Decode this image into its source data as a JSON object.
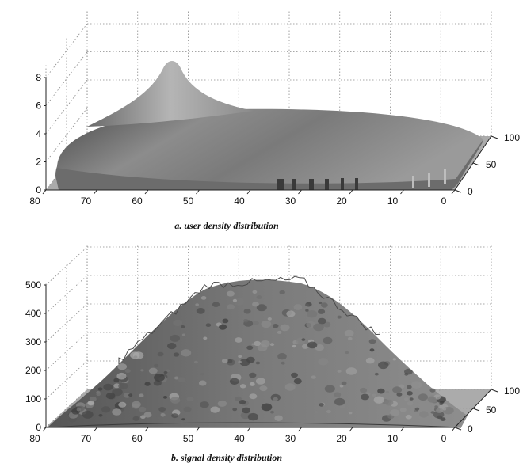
{
  "chart_data": [
    {
      "type": "surface",
      "caption": "a. user density distribution",
      "z_ticks": [
        "0",
        "2",
        "4",
        "6",
        "8"
      ],
      "x_ticks": [
        "80",
        "70",
        "60",
        "50",
        "40",
        "30",
        "20",
        "10",
        "0"
      ],
      "y_ticks": [
        "0",
        "50",
        "100"
      ],
      "xlim": [
        0,
        80
      ],
      "ylim": [
        0,
        100
      ],
      "zlim": [
        0,
        9
      ],
      "grid": true,
      "surface_color": "#6e6e6e",
      "peak": {
        "x": 50,
        "y": 70,
        "z": 8
      },
      "plateau_z": 1.2
    },
    {
      "type": "surface",
      "caption": "b. signal density distribution",
      "z_ticks": [
        "0",
        "100",
        "200",
        "300",
        "400",
        "500"
      ],
      "x_ticks": [
        "80",
        "70",
        "60",
        "50",
        "40",
        "30",
        "20",
        "10",
        "0"
      ],
      "y_ticks": [
        "0",
        "50",
        "100"
      ],
      "xlim": [
        0,
        80
      ],
      "ylim": [
        0,
        100
      ],
      "zlim": [
        0,
        520
      ],
      "grid": true,
      "surface_color": "#5e5e5e",
      "peak": {
        "x": 40,
        "y": 50,
        "z": 460
      }
    }
  ]
}
